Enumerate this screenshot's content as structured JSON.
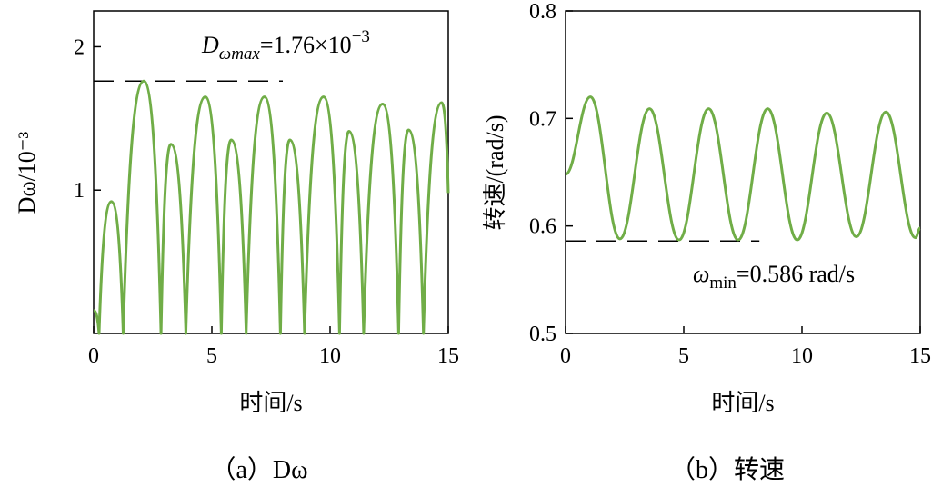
{
  "colors": {
    "line": "#70ad47",
    "axis": "#000000",
    "reference": "#000000"
  },
  "chart_data": [
    {
      "type": "line",
      "panel": "a",
      "caption": "（a）Dω",
      "xlabel": "时间/s",
      "ylabel": "Dω/10⁻³",
      "xlim": [
        0,
        15
      ],
      "ylim": [
        0,
        2.25
      ],
      "xticks": [
        0,
        5,
        10,
        15
      ],
      "yticks": [
        1,
        2
      ],
      "grid": false,
      "series": [
        {
          "x": [
            0,
            0.23,
            0.75,
            1.25,
            2.12,
            2.85,
            3.27,
            3.9,
            4.72,
            5.4,
            5.82,
            6.45,
            7.22,
            7.9,
            8.3,
            8.92,
            9.72,
            10.4,
            10.8,
            11.42,
            12.22,
            12.9,
            13.32,
            13.95,
            14.72,
            15
          ],
          "y": [
            0.16,
            0,
            0.92,
            0,
            1.76,
            0,
            1.32,
            0,
            1.65,
            0,
            1.35,
            0,
            1.65,
            0,
            1.35,
            0,
            1.65,
            0,
            1.41,
            0,
            1.6,
            0,
            1.42,
            0,
            1.61,
            0.98
          ]
        }
      ],
      "reference": {
        "y": 1.76,
        "x_range": [
          0,
          8
        ],
        "style": "dashed"
      },
      "annotation": {
        "symbol": "D",
        "subscript": "ωmax",
        "value_text": "=1.76×10",
        "exponent": "−3"
      }
    },
    {
      "type": "line",
      "panel": "b",
      "caption": "（b）转速",
      "xlabel": "时间/s",
      "ylabel": "转速/(rad/s)",
      "xlim": [
        0,
        15
      ],
      "ylim": [
        0.5,
        0.8
      ],
      "xticks": [
        0,
        5,
        10,
        15
      ],
      "yticks": [
        0.5,
        0.6,
        0.7,
        0.8
      ],
      "grid": false,
      "series": [
        {
          "x": [
            0,
            1.05,
            2.3,
            3.55,
            4.8,
            6.05,
            7.3,
            8.55,
            9.8,
            11.05,
            12.3,
            13.55,
            14.8,
            15
          ],
          "y": [
            0.648,
            0.72,
            0.588,
            0.709,
            0.587,
            0.709,
            0.587,
            0.709,
            0.587,
            0.705,
            0.59,
            0.706,
            0.589,
            0.598
          ]
        }
      ],
      "reference": {
        "y": 0.586,
        "x_range": [
          0,
          8.2
        ],
        "style": "dashed"
      },
      "annotation": {
        "symbol": "ω",
        "subscript": "min",
        "value_text": "=0.586 rad/s"
      }
    }
  ]
}
